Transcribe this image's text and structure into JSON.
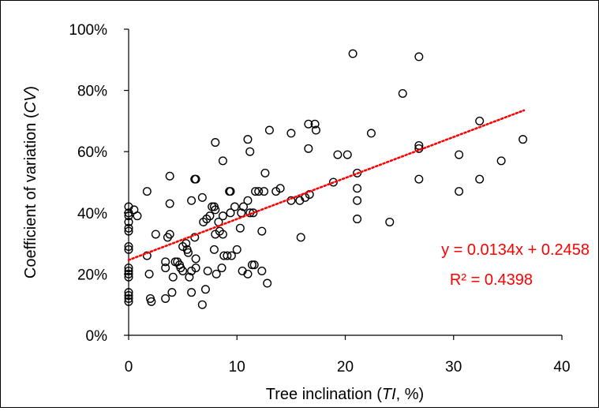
{
  "chart_data": {
    "type": "scatter",
    "title": "",
    "xlabel": "Tree inclination (TI, %)",
    "xlabel_parts": [
      "Tree inclination (",
      "TI",
      ", %)"
    ],
    "ylabel": "Coefficient of variation (CV)",
    "ylabel_parts": [
      "Coefficient of variation (",
      "CV",
      ")"
    ],
    "xlim": [
      0,
      40
    ],
    "ylim": [
      0,
      1
    ],
    "x_ticks": [
      "0",
      "10",
      "20",
      "30",
      "40"
    ],
    "y_ticks": [
      "0%",
      "20%",
      "40%",
      "60%",
      "80%",
      "100%"
    ],
    "grid": false,
    "legend": "none",
    "marker": "hollow-circle",
    "marker_color": "#000000",
    "trendline": {
      "type": "linear",
      "slope": 0.0134,
      "intercept": 0.2458,
      "x_range": [
        0,
        36.5
      ],
      "color": "#ff0000",
      "style": "dotted"
    },
    "equation_label": "y = 0.0134x + 0.2458",
    "r2_label": "R² = 0.4398",
    "annotation_color": "#ff0000",
    "points": [
      {
        "x": 0,
        "y": 0.42
      },
      {
        "x": 0,
        "y": 0.4
      },
      {
        "x": 0,
        "y": 0.39
      },
      {
        "x": 0,
        "y": 0.37
      },
      {
        "x": 0,
        "y": 0.35
      },
      {
        "x": 0,
        "y": 0.34
      },
      {
        "x": 0,
        "y": 0.29
      },
      {
        "x": 0,
        "y": 0.28
      },
      {
        "x": 0,
        "y": 0.22
      },
      {
        "x": 0,
        "y": 0.21
      },
      {
        "x": 0,
        "y": 0.2
      },
      {
        "x": 0,
        "y": 0.19
      },
      {
        "x": 0,
        "y": 0.14
      },
      {
        "x": 0,
        "y": 0.13
      },
      {
        "x": 0,
        "y": 0.12
      },
      {
        "x": 0,
        "y": 0.11
      },
      {
        "x": 0.5,
        "y": 0.41
      },
      {
        "x": 0.8,
        "y": 0.39
      },
      {
        "x": 1.7,
        "y": 0.47
      },
      {
        "x": 1.7,
        "y": 0.26
      },
      {
        "x": 1.9,
        "y": 0.2
      },
      {
        "x": 2.0,
        "y": 0.12
      },
      {
        "x": 2.1,
        "y": 0.11
      },
      {
        "x": 2.5,
        "y": 0.33
      },
      {
        "x": 3.4,
        "y": 0.24
      },
      {
        "x": 3.4,
        "y": 0.22
      },
      {
        "x": 3.4,
        "y": 0.12
      },
      {
        "x": 3.6,
        "y": 0.32
      },
      {
        "x": 3.8,
        "y": 0.33
      },
      {
        "x": 3.8,
        "y": 0.43
      },
      {
        "x": 3.8,
        "y": 0.52
      },
      {
        "x": 4.0,
        "y": 0.14
      },
      {
        "x": 4.1,
        "y": 0.19
      },
      {
        "x": 4.3,
        "y": 0.24
      },
      {
        "x": 4.5,
        "y": 0.24
      },
      {
        "x": 4.7,
        "y": 0.23
      },
      {
        "x": 4.8,
        "y": 0.22
      },
      {
        "x": 5.0,
        "y": 0.21
      },
      {
        "x": 5.0,
        "y": 0.29
      },
      {
        "x": 5.3,
        "y": 0.3
      },
      {
        "x": 5.4,
        "y": 0.28
      },
      {
        "x": 5.5,
        "y": 0.27
      },
      {
        "x": 5.6,
        "y": 0.19
      },
      {
        "x": 5.8,
        "y": 0.21
      },
      {
        "x": 5.8,
        "y": 0.14
      },
      {
        "x": 5.8,
        "y": 0.44
      },
      {
        "x": 6.1,
        "y": 0.51
      },
      {
        "x": 6.2,
        "y": 0.51
      },
      {
        "x": 6.1,
        "y": 0.32
      },
      {
        "x": 6.2,
        "y": 0.25
      },
      {
        "x": 6.2,
        "y": 0.22
      },
      {
        "x": 6.8,
        "y": 0.1
      },
      {
        "x": 6.8,
        "y": 0.45
      },
      {
        "x": 6.9,
        "y": 0.37
      },
      {
        "x": 7.1,
        "y": 0.15
      },
      {
        "x": 7.2,
        "y": 0.38
      },
      {
        "x": 7.3,
        "y": 0.21
      },
      {
        "x": 7.5,
        "y": 0.39
      },
      {
        "x": 7.7,
        "y": 0.42
      },
      {
        "x": 7.9,
        "y": 0.42
      },
      {
        "x": 8.0,
        "y": 0.41
      },
      {
        "x": 8.0,
        "y": 0.63
      },
      {
        "x": 7.9,
        "y": 0.28
      },
      {
        "x": 8.0,
        "y": 0.33
      },
      {
        "x": 8.1,
        "y": 0.2
      },
      {
        "x": 8.3,
        "y": 0.37
      },
      {
        "x": 8.4,
        "y": 0.34
      },
      {
        "x": 8.6,
        "y": 0.22
      },
      {
        "x": 8.7,
        "y": 0.57
      },
      {
        "x": 8.7,
        "y": 0.39
      },
      {
        "x": 8.7,
        "y": 0.33
      },
      {
        "x": 8.8,
        "y": 0.26
      },
      {
        "x": 9.1,
        "y": 0.26
      },
      {
        "x": 9.3,
        "y": 0.47
      },
      {
        "x": 9.4,
        "y": 0.47
      },
      {
        "x": 9.4,
        "y": 0.4
      },
      {
        "x": 9.5,
        "y": 0.26
      },
      {
        "x": 9.8,
        "y": 0.42
      },
      {
        "x": 10.0,
        "y": 0.28
      },
      {
        "x": 10.3,
        "y": 0.35
      },
      {
        "x": 10.4,
        "y": 0.4
      },
      {
        "x": 10.6,
        "y": 0.42
      },
      {
        "x": 10.5,
        "y": 0.21
      },
      {
        "x": 11.0,
        "y": 0.64
      },
      {
        "x": 11.2,
        "y": 0.6
      },
      {
        "x": 11.0,
        "y": 0.44
      },
      {
        "x": 11.2,
        "y": 0.4
      },
      {
        "x": 11.0,
        "y": 0.2
      },
      {
        "x": 11.4,
        "y": 0.23
      },
      {
        "x": 11.5,
        "y": 0.4
      },
      {
        "x": 11.6,
        "y": 0.23
      },
      {
        "x": 11.7,
        "y": 0.47
      },
      {
        "x": 12.0,
        "y": 0.47
      },
      {
        "x": 12.3,
        "y": 0.34
      },
      {
        "x": 12.3,
        "y": 0.21
      },
      {
        "x": 12.5,
        "y": 0.47
      },
      {
        "x": 12.6,
        "y": 0.53
      },
      {
        "x": 12.8,
        "y": 0.17
      },
      {
        "x": 13.0,
        "y": 0.67
      },
      {
        "x": 13.6,
        "y": 0.47
      },
      {
        "x": 14.0,
        "y": 0.48
      },
      {
        "x": 15.0,
        "y": 0.66
      },
      {
        "x": 15.0,
        "y": 0.44
      },
      {
        "x": 15.8,
        "y": 0.44
      },
      {
        "x": 15.9,
        "y": 0.32
      },
      {
        "x": 16.3,
        "y": 0.45
      },
      {
        "x": 16.6,
        "y": 0.69
      },
      {
        "x": 16.6,
        "y": 0.61
      },
      {
        "x": 16.7,
        "y": 0.46
      },
      {
        "x": 17.2,
        "y": 0.69
      },
      {
        "x": 17.3,
        "y": 0.67
      },
      {
        "x": 18.9,
        "y": 0.5
      },
      {
        "x": 19.3,
        "y": 0.59
      },
      {
        "x": 20.2,
        "y": 0.59
      },
      {
        "x": 20.7,
        "y": 0.92
      },
      {
        "x": 21.1,
        "y": 0.53
      },
      {
        "x": 21.1,
        "y": 0.48
      },
      {
        "x": 21.1,
        "y": 0.44
      },
      {
        "x": 21.1,
        "y": 0.38
      },
      {
        "x": 22.4,
        "y": 0.66
      },
      {
        "x": 24.1,
        "y": 0.37
      },
      {
        "x": 25.3,
        "y": 0.79
      },
      {
        "x": 26.8,
        "y": 0.91
      },
      {
        "x": 26.8,
        "y": 0.62
      },
      {
        "x": 26.8,
        "y": 0.61
      },
      {
        "x": 26.8,
        "y": 0.51
      },
      {
        "x": 30.5,
        "y": 0.59
      },
      {
        "x": 30.5,
        "y": 0.47
      },
      {
        "x": 32.4,
        "y": 0.7
      },
      {
        "x": 32.4,
        "y": 0.51
      },
      {
        "x": 34.4,
        "y": 0.57
      },
      {
        "x": 36.4,
        "y": 0.64
      }
    ]
  }
}
